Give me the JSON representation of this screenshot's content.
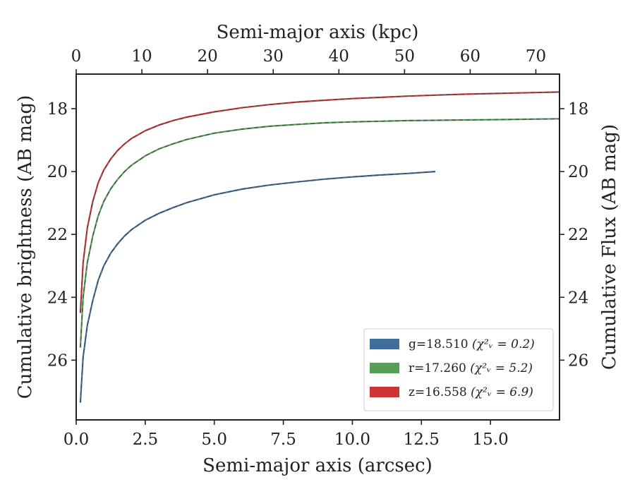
{
  "chart_data": {
    "type": "line",
    "xlabel": "Semi-major axis (arcsec)",
    "ylabel": "Cumulative brightness (AB mag)",
    "x2label": "Semi-major axis (kpc)",
    "y2label": "Cumulative Flux (AB mag)",
    "xlim": [
      0,
      17.5
    ],
    "ylim": [
      27.9,
      16.9
    ],
    "x2lim": [
      0,
      73.6
    ],
    "y_inverted": true,
    "xticks": [
      "0.0",
      "2.5",
      "5.0",
      "7.5",
      "10.0",
      "12.5",
      "15.0"
    ],
    "x2ticks": [
      "0",
      "10",
      "20",
      "30",
      "40",
      "50",
      "60",
      "70"
    ],
    "yticks": [
      "18",
      "20",
      "22",
      "24",
      "26"
    ],
    "grid": false,
    "legend_position": "lower-right",
    "series": [
      {
        "name": "g=18.510",
        "chi": "(χ²ᵥ = 0.2)",
        "color": "#3f6e9c",
        "x": [
          0.15,
          0.25,
          0.4,
          0.6,
          0.8,
          1.0,
          1.25,
          1.5,
          1.75,
          2.0,
          2.5,
          3.0,
          3.5,
          4.0,
          5.0,
          6.0,
          7.0,
          8.0,
          9.0,
          10.0,
          11.0,
          12.0,
          13.0
        ],
        "y": [
          27.35,
          25.9,
          24.9,
          24.1,
          23.45,
          23.0,
          22.6,
          22.3,
          22.05,
          21.85,
          21.55,
          21.33,
          21.15,
          20.99,
          20.74,
          20.56,
          20.43,
          20.33,
          20.24,
          20.17,
          20.11,
          20.06,
          20.0
        ]
      },
      {
        "name": "r=17.260",
        "chi": "(χ²ᵥ = 5.2)",
        "color": "#55a055",
        "x": [
          0.15,
          0.25,
          0.4,
          0.6,
          0.8,
          1.0,
          1.25,
          1.5,
          1.75,
          2.0,
          2.5,
          3.0,
          3.5,
          4.0,
          5.0,
          6.0,
          7.0,
          8.0,
          9.0,
          10.0,
          11.0,
          12.0,
          13.0,
          14.0,
          15.0,
          16.0,
          17.5
        ],
        "y": [
          25.6,
          24.0,
          22.9,
          22.05,
          21.4,
          20.95,
          20.55,
          20.25,
          20.0,
          19.8,
          19.5,
          19.28,
          19.12,
          18.98,
          18.78,
          18.65,
          18.56,
          18.5,
          18.45,
          18.42,
          18.4,
          18.38,
          18.37,
          18.36,
          18.35,
          18.34,
          18.32
        ]
      },
      {
        "name": "z=16.558",
        "chi": "(χ²ᵥ = 6.9)",
        "color": "#cc3333",
        "x": [
          0.15,
          0.25,
          0.4,
          0.6,
          0.8,
          1.0,
          1.25,
          1.5,
          1.75,
          2.0,
          2.5,
          3.0,
          3.5,
          4.0,
          5.0,
          6.0,
          7.0,
          8.0,
          9.0,
          10.0,
          11.0,
          12.0,
          13.0,
          14.0,
          15.0,
          16.0,
          17.5
        ],
        "y": [
          24.5,
          22.9,
          21.8,
          20.95,
          20.35,
          19.95,
          19.6,
          19.33,
          19.12,
          18.95,
          18.7,
          18.52,
          18.38,
          18.27,
          18.1,
          17.97,
          17.87,
          17.79,
          17.73,
          17.68,
          17.64,
          17.6,
          17.57,
          17.54,
          17.52,
          17.5,
          17.47
        ]
      }
    ]
  }
}
